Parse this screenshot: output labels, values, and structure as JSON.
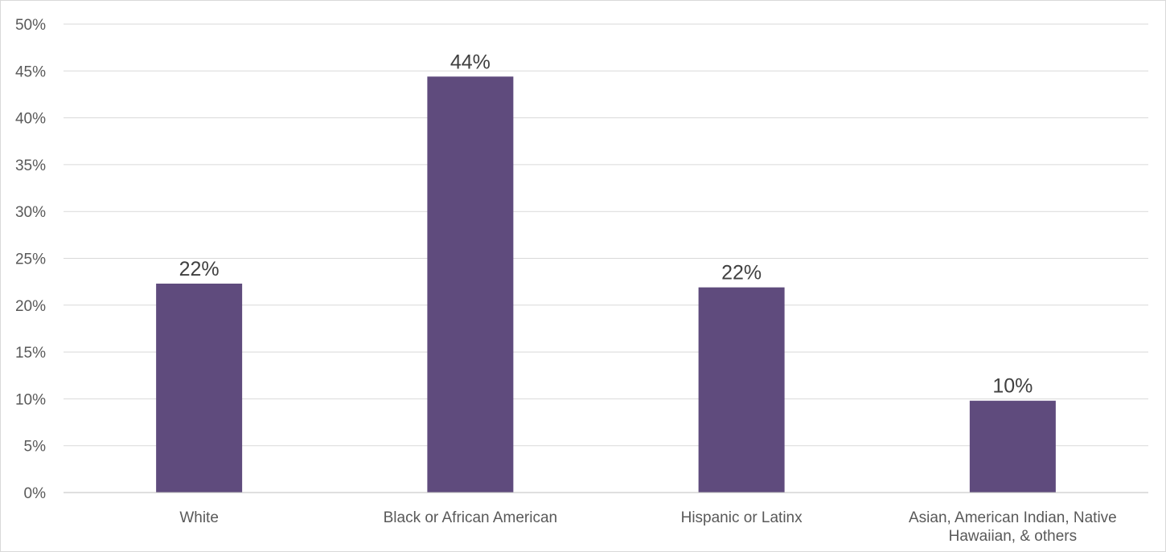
{
  "chart_data": {
    "type": "bar",
    "categories": [
      [
        "White"
      ],
      [
        "Black or African American"
      ],
      [
        "Hispanic or Latinx"
      ],
      [
        "Asian, American Indian, Native",
        "Hawaiian, & others"
      ]
    ],
    "values": [
      22.3,
      44.4,
      21.9,
      9.8
    ],
    "data_labels": [
      "22%",
      "44%",
      "22%",
      "10%"
    ],
    "y_tick_labels": [
      "0%",
      "5%",
      "10%",
      "15%",
      "20%",
      "25%",
      "30%",
      "35%",
      "40%",
      "45%",
      "50%"
    ],
    "ylim": [
      0,
      50
    ],
    "y_tick_step": 5,
    "grid": true,
    "legend": "none",
    "bar_color": "#5f4b7d",
    "title": "",
    "xlabel": "",
    "ylabel": ""
  }
}
